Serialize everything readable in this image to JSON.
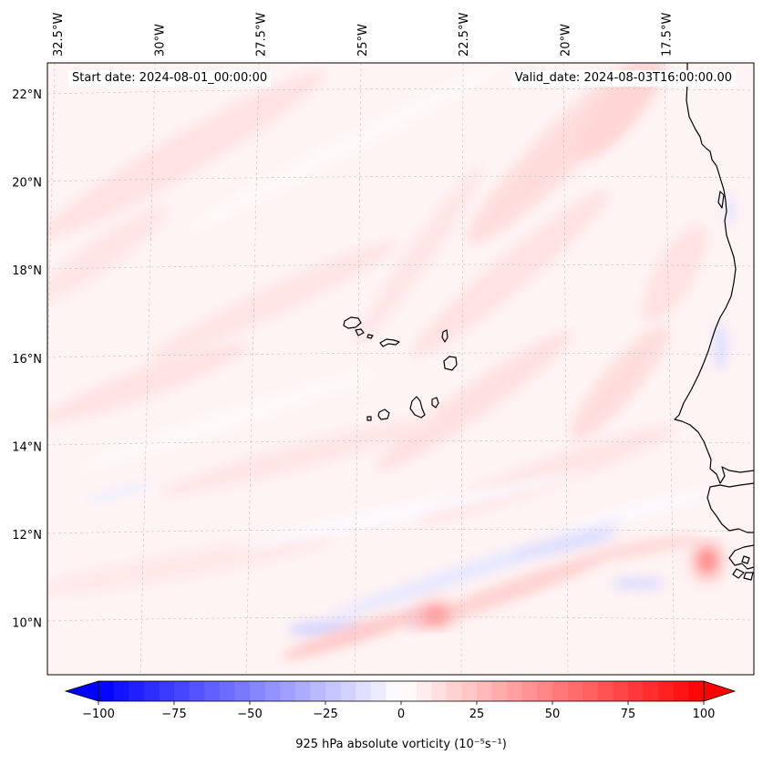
{
  "map": {
    "start_date_label": "Start date: 2024-08-01_00:00:00",
    "valid_date_label": "Valid_date: 2024-08-03T16:00:00.00",
    "lon_labels": [
      "32.5°W",
      "30°W",
      "27.5°W",
      "25°W",
      "22.5°W",
      "20°W",
      "17.5°W"
    ],
    "lat_labels": [
      "22°N",
      "20°N",
      "18°N",
      "16°N",
      "14°N",
      "12°N",
      "10°N"
    ],
    "lon_values": [
      -32.5,
      -30,
      -27.5,
      -25,
      -22.5,
      -20,
      -17.5
    ],
    "lat_values": [
      22,
      20,
      18,
      16,
      14,
      12,
      10
    ],
    "extent": {
      "lon_min": -33.5,
      "lon_max": -16.2,
      "lat_min": 8.9,
      "lat_max": 22.8
    },
    "features": [
      "coastline-africa",
      "cape-verde-islands"
    ],
    "gridlines": true
  },
  "colorbar": {
    "label": "925 hPa absolute vorticity (10⁻⁵s⁻¹)",
    "min": -100,
    "max": 100,
    "extend": "both",
    "cmap": "bwr",
    "tick_values": [
      -100,
      -75,
      -50,
      -25,
      0,
      25,
      50,
      75,
      100
    ],
    "tick_labels": [
      "−100",
      "−75",
      "−50",
      "−25",
      "0",
      "25",
      "50",
      "75",
      "100"
    ],
    "colors": {
      "low": "#0000ff",
      "mid": "#ffffff",
      "high": "#ff0000"
    }
  },
  "field_features": [
    {
      "name": "positive-maximum",
      "lon": -16.9,
      "lat": 11.5,
      "value": 60
    },
    {
      "name": "positive-maximum",
      "lon": -23.2,
      "lat": 10.2,
      "value": 45
    },
    {
      "name": "positive-band",
      "lon": -24.8,
      "lat": 9.9,
      "value": 25
    },
    {
      "name": "negative-minimum",
      "lon": -26.5,
      "lat": 10.0,
      "value": -20
    },
    {
      "name": "negative-minimum",
      "lon": -23.7,
      "lat": 10.2,
      "value": -20
    },
    {
      "name": "negative-band",
      "lon": -22.0,
      "lat": 11.5,
      "value": -15
    },
    {
      "name": "negative-minimum",
      "lon": -17.5,
      "lat": 17.0,
      "value": -10
    }
  ]
}
